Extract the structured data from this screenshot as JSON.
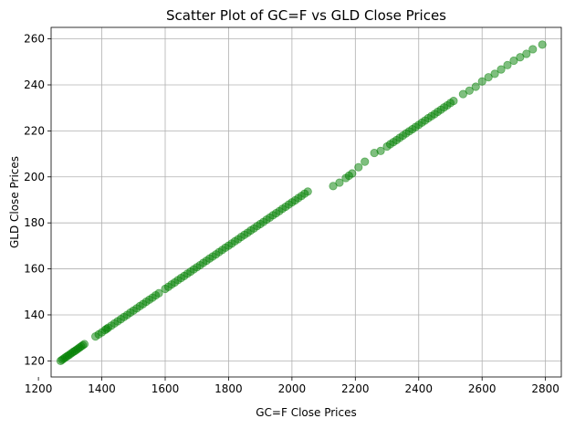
{
  "chart_data": {
    "type": "scatter",
    "title": "Scatter Plot of GC=F vs GLD Close Prices",
    "xlabel": "GC=F Close Prices",
    "ylabel": "GLD Close Prices",
    "xlim": [
      1240,
      2850
    ],
    "ylim": [
      113,
      265
    ],
    "xticks": [
      1200,
      1400,
      1600,
      1800,
      2000,
      2200,
      2400,
      2600,
      2800
    ],
    "yticks": [
      120,
      140,
      160,
      180,
      200,
      220,
      240,
      260
    ],
    "grid": true,
    "marker_color": "#008000",
    "marker_alpha": 0.5,
    "points": [
      [
        1270,
        120
      ],
      [
        1275,
        120.5
      ],
      [
        1280,
        121
      ],
      [
        1285,
        121.5
      ],
      [
        1290,
        122
      ],
      [
        1295,
        122.4
      ],
      [
        1300,
        122.9
      ],
      [
        1305,
        123.4
      ],
      [
        1310,
        123.9
      ],
      [
        1315,
        124.3
      ],
      [
        1320,
        124.8
      ],
      [
        1325,
        125.3
      ],
      [
        1330,
        125.8
      ],
      [
        1335,
        126.3
      ],
      [
        1340,
        126.8
      ],
      [
        1345,
        127.3
      ],
      [
        1380,
        130.6
      ],
      [
        1390,
        131.5
      ],
      [
        1400,
        132.4
      ],
      [
        1410,
        133.4
      ],
      [
        1415,
        133.9
      ],
      [
        1420,
        134.4
      ],
      [
        1430,
        135.3
      ],
      [
        1440,
        136.3
      ],
      [
        1450,
        137.2
      ],
      [
        1460,
        138.1
      ],
      [
        1470,
        139.1
      ],
      [
        1480,
        140.0
      ],
      [
        1490,
        141.0
      ],
      [
        1500,
        141.9
      ],
      [
        1510,
        142.8
      ],
      [
        1520,
        143.8
      ],
      [
        1530,
        144.7
      ],
      [
        1540,
        145.7
      ],
      [
        1550,
        146.6
      ],
      [
        1560,
        147.5
      ],
      [
        1570,
        148.5
      ],
      [
        1580,
        149.4
      ],
      [
        1600,
        151.3
      ],
      [
        1610,
        152.2
      ],
      [
        1620,
        153.2
      ],
      [
        1630,
        154.1
      ],
      [
        1640,
        155.1
      ],
      [
        1650,
        156.0
      ],
      [
        1660,
        156.9
      ],
      [
        1670,
        157.9
      ],
      [
        1680,
        158.8
      ],
      [
        1690,
        159.8
      ],
      [
        1700,
        160.7
      ],
      [
        1710,
        161.6
      ],
      [
        1720,
        162.6
      ],
      [
        1730,
        163.5
      ],
      [
        1740,
        164.5
      ],
      [
        1750,
        165.4
      ],
      [
        1760,
        166.3
      ],
      [
        1770,
        167.3
      ],
      [
        1780,
        168.2
      ],
      [
        1790,
        169.2
      ],
      [
        1800,
        170.1
      ],
      [
        1810,
        171.0
      ],
      [
        1820,
        172.0
      ],
      [
        1830,
        172.9
      ],
      [
        1840,
        173.9
      ],
      [
        1850,
        174.8
      ],
      [
        1860,
        175.7
      ],
      [
        1870,
        176.7
      ],
      [
        1880,
        177.6
      ],
      [
        1890,
        178.6
      ],
      [
        1900,
        179.5
      ],
      [
        1910,
        180.4
      ],
      [
        1920,
        181.4
      ],
      [
        1930,
        182.3
      ],
      [
        1940,
        183.3
      ],
      [
        1950,
        184.2
      ],
      [
        1960,
        185.1
      ],
      [
        1970,
        186.1
      ],
      [
        1980,
        187.0
      ],
      [
        1990,
        188.0
      ],
      [
        2000,
        188.9
      ],
      [
        2010,
        189.8
      ],
      [
        2020,
        190.8
      ],
      [
        2030,
        191.7
      ],
      [
        2040,
        192.7
      ],
      [
        2050,
        193.6
      ],
      [
        2130,
        196.0
      ],
      [
        2150,
        197.5
      ],
      [
        2170,
        199.5
      ],
      [
        2180,
        200.5
      ],
      [
        2190,
        201.5
      ],
      [
        2210,
        204.2
      ],
      [
        2230,
        206.6
      ],
      [
        2260,
        210.4
      ],
      [
        2280,
        211.3
      ],
      [
        2300,
        213.2
      ],
      [
        2310,
        214.2
      ],
      [
        2320,
        215.1
      ],
      [
        2330,
        216.0
      ],
      [
        2340,
        217.0
      ],
      [
        2350,
        217.9
      ],
      [
        2360,
        218.9
      ],
      [
        2370,
        219.8
      ],
      [
        2380,
        220.7
      ],
      [
        2390,
        221.7
      ],
      [
        2400,
        222.6
      ],
      [
        2410,
        223.6
      ],
      [
        2420,
        224.5
      ],
      [
        2430,
        225.5
      ],
      [
        2440,
        226.4
      ],
      [
        2450,
        227.3
      ],
      [
        2460,
        228.3
      ],
      [
        2470,
        229.2
      ],
      [
        2480,
        230.2
      ],
      [
        2490,
        231.1
      ],
      [
        2500,
        232.1
      ],
      [
        2510,
        233.0
      ],
      [
        2540,
        236.0
      ],
      [
        2560,
        237.5
      ],
      [
        2580,
        239.2
      ],
      [
        2600,
        241.5
      ],
      [
        2620,
        243.3
      ],
      [
        2640,
        244.8
      ],
      [
        2660,
        246.7
      ],
      [
        2680,
        248.6
      ],
      [
        2700,
        250.5
      ],
      [
        2720,
        252.0
      ],
      [
        2740,
        253.5
      ],
      [
        2760,
        255.5
      ],
      [
        2790,
        257.5
      ]
    ]
  }
}
